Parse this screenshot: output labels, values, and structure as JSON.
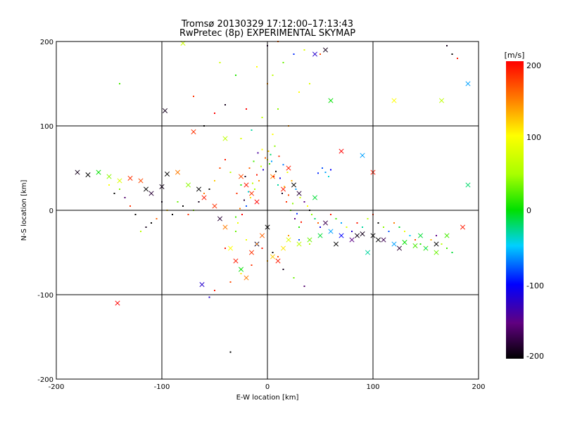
{
  "chart_data": {
    "type": "scatter",
    "title": "Tromsø 20130329 17:12:00–17:13:43",
    "subtitle": "RwPretec (8p) EXPERIMENTAL SKYMAP",
    "xlabel": "E-W location [km]",
    "ylabel": "N-S location [km]",
    "xlim": [
      -200,
      200
    ],
    "ylim": [
      -200,
      200
    ],
    "xticks": [
      "-200",
      "-100",
      "0",
      "100",
      "200"
    ],
    "yticks": [
      "-200",
      "-100",
      "0",
      "100",
      "200"
    ],
    "grid": true,
    "colorbar": {
      "label": "[m/s]",
      "range": [
        -200,
        200
      ],
      "ticks": [
        "-200",
        "-100",
        "0",
        "100",
        "200"
      ]
    },
    "series": [
      {
        "marker": "x",
        "points": [
          [
            -180,
            45,
            -190
          ],
          [
            -170,
            42,
            -210
          ],
          [
            -160,
            45,
            0
          ],
          [
            -150,
            40,
            40
          ],
          [
            -140,
            35,
            80
          ],
          [
            -130,
            38,
            180
          ],
          [
            -120,
            35,
            170
          ],
          [
            -115,
            25,
            -200
          ],
          [
            -110,
            20,
            -180
          ],
          [
            -100,
            28,
            -190
          ],
          [
            -95,
            43,
            -200
          ],
          [
            -85,
            45,
            150
          ],
          [
            -75,
            30,
            40
          ],
          [
            -65,
            25,
            -200
          ],
          [
            -60,
            15,
            190
          ],
          [
            -50,
            5,
            180
          ],
          [
            -45,
            -10,
            -180
          ],
          [
            -40,
            -20,
            150
          ],
          [
            -35,
            -45,
            100
          ],
          [
            -30,
            -60,
            190
          ],
          [
            -25,
            -70,
            0
          ],
          [
            -20,
            -80,
            150
          ],
          [
            -15,
            -50,
            180
          ],
          [
            -10,
            -40,
            -190
          ],
          [
            -5,
            -30,
            160
          ],
          [
            0,
            -20,
            -200
          ],
          [
            5,
            -55,
            120
          ],
          [
            10,
            -60,
            190
          ],
          [
            15,
            -45,
            110
          ],
          [
            20,
            -35,
            80
          ],
          [
            30,
            -40,
            60
          ],
          [
            40,
            -35,
            30
          ],
          [
            50,
            -30,
            -10
          ],
          [
            60,
            -25,
            -60
          ],
          [
            70,
            -30,
            -100
          ],
          [
            80,
            -35,
            -150
          ],
          [
            90,
            -28,
            -190
          ],
          [
            100,
            -30,
            -200
          ],
          [
            110,
            -35,
            -170
          ],
          [
            120,
            -40,
            -60
          ],
          [
            130,
            -38,
            0
          ],
          [
            140,
            -42,
            20
          ],
          [
            150,
            -45,
            10
          ],
          [
            160,
            -50,
            30
          ],
          [
            185,
            -20,
            190
          ],
          [
            -142,
            -110,
            200
          ],
          [
            -62,
            -88,
            -120
          ],
          [
            -80,
            198,
            70
          ],
          [
            190,
            30,
            -20
          ],
          [
            190,
            150,
            -60
          ],
          [
            -97,
            118,
            -190
          ],
          [
            -70,
            93,
            180
          ],
          [
            45,
            185,
            -120
          ],
          [
            55,
            190,
            -190
          ],
          [
            120,
            130,
            100
          ],
          [
            165,
            130,
            60
          ],
          [
            60,
            130,
            0
          ],
          [
            70,
            70,
            200
          ],
          [
            90,
            65,
            -60
          ],
          [
            100,
            45,
            190
          ],
          [
            -40,
            85,
            60
          ],
          [
            25,
            30,
            -200
          ],
          [
            20,
            50,
            190
          ],
          [
            -25,
            40,
            170
          ],
          [
            -20,
            30,
            190
          ],
          [
            -15,
            20,
            180
          ],
          [
            -10,
            10,
            200
          ],
          [
            5,
            40,
            150
          ],
          [
            15,
            25,
            190
          ],
          [
            30,
            20,
            -180
          ],
          [
            45,
            15,
            -10
          ],
          [
            55,
            -15,
            -170
          ],
          [
            65,
            -40,
            -200
          ],
          [
            85,
            -30,
            -190
          ],
          [
            95,
            -50,
            -30
          ],
          [
            105,
            -35,
            -210
          ],
          [
            125,
            -45,
            -180
          ],
          [
            145,
            -30,
            -10
          ],
          [
            160,
            -40,
            -200
          ],
          [
            170,
            -30,
            20
          ]
        ]
      },
      {
        "marker": "dot",
        "points": [
          [
            0,
            60,
            80
          ],
          [
            2,
            55,
            20
          ],
          [
            -4,
            48,
            -120
          ],
          [
            6,
            40,
            190
          ],
          [
            -8,
            35,
            140
          ],
          [
            10,
            30,
            -30
          ],
          [
            -12,
            25,
            50
          ],
          [
            14,
            20,
            -190
          ],
          [
            -16,
            15,
            110
          ],
          [
            18,
            10,
            180
          ],
          [
            -20,
            5,
            -80
          ],
          [
            22,
            0,
            30
          ],
          [
            -24,
            -5,
            200
          ],
          [
            26,
            -10,
            -150
          ],
          [
            -28,
            -15,
            90
          ],
          [
            30,
            -20,
            10
          ],
          [
            -2,
            62,
            160
          ],
          [
            4,
            58,
            -60
          ],
          [
            -6,
            52,
            70
          ],
          [
            8,
            46,
            -200
          ],
          [
            -10,
            42,
            190
          ],
          [
            12,
            38,
            -110
          ],
          [
            -14,
            32,
            60
          ],
          [
            16,
            28,
            130
          ],
          [
            -18,
            22,
            -40
          ],
          [
            20,
            18,
            170
          ],
          [
            -22,
            12,
            -180
          ],
          [
            24,
            8,
            40
          ],
          [
            -26,
            2,
            150
          ],
          [
            28,
            -4,
            -90
          ],
          [
            -30,
            -8,
            20
          ],
          [
            32,
            -14,
            190
          ],
          [
            1,
            70,
            120
          ],
          [
            3,
            66,
            -20
          ],
          [
            -5,
            72,
            100
          ],
          [
            7,
            76,
            40
          ],
          [
            -9,
            68,
            -140
          ],
          [
            11,
            64,
            180
          ],
          [
            -13,
            58,
            20
          ],
          [
            15,
            54,
            -70
          ],
          [
            -17,
            50,
            160
          ],
          [
            19,
            45,
            90
          ],
          [
            -21,
            40,
            -190
          ],
          [
            23,
            35,
            130
          ],
          [
            -25,
            30,
            10
          ],
          [
            27,
            25,
            -60
          ],
          [
            -29,
            20,
            180
          ],
          [
            31,
            15,
            70
          ],
          [
            35,
            10,
            -150
          ],
          [
            38,
            5,
            100
          ],
          [
            40,
            0,
            -200
          ],
          [
            42,
            -5,
            40
          ],
          [
            45,
            -10,
            -20
          ],
          [
            48,
            -15,
            160
          ],
          [
            50,
            -20,
            -110
          ],
          [
            52,
            50,
            -80
          ],
          [
            55,
            45,
            -60
          ],
          [
            58,
            40,
            -40
          ],
          [
            60,
            48,
            -100
          ],
          [
            48,
            44,
            -90
          ],
          [
            10,
            120,
            40
          ],
          [
            -5,
            110,
            60
          ],
          [
            20,
            100,
            140
          ],
          [
            -15,
            95,
            -30
          ],
          [
            5,
            90,
            100
          ],
          [
            -25,
            85,
            80
          ],
          [
            -40,
            60,
            190
          ],
          [
            -45,
            50,
            170
          ],
          [
            -35,
            45,
            60
          ],
          [
            -50,
            35,
            120
          ],
          [
            -55,
            25,
            -200
          ],
          [
            -60,
            20,
            150
          ],
          [
            -65,
            10,
            -190
          ],
          [
            -70,
            0,
            40
          ],
          [
            -75,
            -5,
            180
          ],
          [
            -80,
            5,
            -200
          ],
          [
            -85,
            10,
            30
          ],
          [
            -90,
            -5,
            -210
          ],
          [
            -95,
            0,
            120
          ],
          [
            -100,
            10,
            -190
          ],
          [
            -105,
            -10,
            160
          ],
          [
            -110,
            -15,
            -200
          ],
          [
            -115,
            -20,
            -190
          ],
          [
            -120,
            -25,
            60
          ],
          [
            -125,
            -5,
            -200
          ],
          [
            -130,
            5,
            180
          ],
          [
            -135,
            15,
            -160
          ],
          [
            -140,
            25,
            40
          ],
          [
            -145,
            20,
            -200
          ],
          [
            -150,
            30,
            100
          ],
          [
            60,
            -5,
            190
          ],
          [
            65,
            -10,
            20
          ],
          [
            70,
            -15,
            -60
          ],
          [
            75,
            -20,
            80
          ],
          [
            80,
            -25,
            -120
          ],
          [
            85,
            -15,
            190
          ],
          [
            90,
            -20,
            -30
          ],
          [
            95,
            -10,
            60
          ],
          [
            100,
            -5,
            180
          ],
          [
            105,
            -15,
            -200
          ],
          [
            110,
            -20,
            40
          ],
          [
            115,
            -25,
            -80
          ],
          [
            120,
            -15,
            150
          ],
          [
            125,
            -20,
            -10
          ],
          [
            130,
            -25,
            90
          ],
          [
            135,
            -30,
            -50
          ],
          [
            140,
            -35,
            170
          ],
          [
            145,
            -40,
            10
          ],
          [
            150,
            -45,
            -30
          ],
          [
            155,
            -35,
            130
          ],
          [
            160,
            -30,
            -150
          ],
          [
            165,
            -40,
            60
          ],
          [
            170,
            -45,
            20
          ],
          [
            175,
            -50,
            -10
          ],
          [
            -10,
            -40,
            150
          ],
          [
            -5,
            -45,
            190
          ],
          [
            5,
            -50,
            -200
          ],
          [
            10,
            -55,
            170
          ],
          [
            -20,
            -35,
            90
          ],
          [
            20,
            -30,
            140
          ],
          [
            -30,
            -25,
            30
          ],
          [
            30,
            -35,
            -80
          ],
          [
            -40,
            -45,
            190
          ],
          [
            40,
            -40,
            60
          ],
          [
            0,
            -60,
            130
          ],
          [
            -15,
            -65,
            180
          ],
          [
            15,
            -70,
            -190
          ],
          [
            -25,
            -75,
            110
          ],
          [
            25,
            -80,
            30
          ],
          [
            -35,
            -85,
            170
          ],
          [
            35,
            -90,
            -160
          ],
          [
            -50,
            -95,
            190
          ],
          [
            -55,
            -103,
            -120
          ],
          [
            -35,
            -168,
            -200
          ],
          [
            0,
            150,
            140
          ],
          [
            5,
            160,
            60
          ],
          [
            -10,
            170,
            100
          ],
          [
            15,
            175,
            30
          ],
          [
            25,
            185,
            -90
          ],
          [
            35,
            190,
            80
          ],
          [
            50,
            185,
            170
          ],
          [
            -20,
            120,
            200
          ],
          [
            30,
            140,
            100
          ],
          [
            40,
            150,
            80
          ],
          [
            -60,
            100,
            -200
          ],
          [
            -50,
            115,
            200
          ],
          [
            -40,
            125,
            -190
          ],
          [
            -70,
            135,
            180
          ],
          [
            -140,
            150,
            20
          ],
          [
            170,
            195,
            -190
          ],
          [
            175,
            185,
            -200
          ],
          [
            180,
            180,
            190
          ],
          [
            -30,
            160,
            10
          ],
          [
            -45,
            175,
            70
          ],
          [
            0,
            195,
            -180
          ],
          [
            10,
            200,
            160
          ]
        ]
      }
    ]
  }
}
